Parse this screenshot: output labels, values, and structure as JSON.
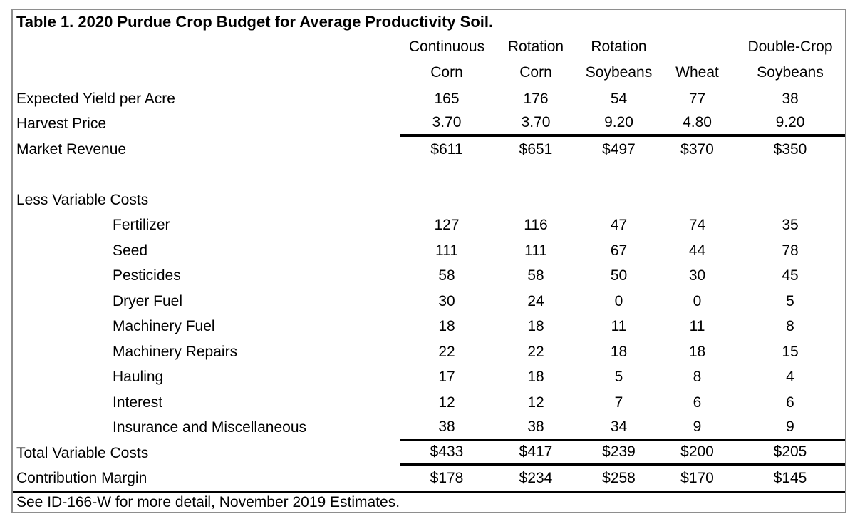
{
  "table": {
    "title": "Table 1. 2020 Purdue Crop Budget for Average Productivity Soil.",
    "columns": [
      {
        "line1": "Continuous",
        "line2": "Corn"
      },
      {
        "line1": "Rotation",
        "line2": "Corn"
      },
      {
        "line1": "Rotation",
        "line2": "Soybeans"
      },
      {
        "line1": "",
        "line2": "Wheat"
      },
      {
        "line1": "Double-Crop",
        "line2": "Soybeans"
      }
    ],
    "rows": [
      {
        "label": "Expected Yield per Acre",
        "indent": false,
        "values": [
          "165",
          "176",
          "54",
          "77",
          "38"
        ],
        "rule_below": "none"
      },
      {
        "label": "Harvest Price",
        "indent": false,
        "values": [
          "3.70",
          "3.70",
          "9.20",
          "4.80",
          "9.20"
        ],
        "rule_below": "thick"
      },
      {
        "label": "Market Revenue",
        "indent": false,
        "values": [
          "$611",
          "$651",
          "$497",
          "$370",
          "$350"
        ],
        "rule_below": "none"
      },
      {
        "label": "",
        "indent": false,
        "values": [
          "",
          "",
          "",
          "",
          ""
        ],
        "rule_below": "none"
      },
      {
        "label": "Less Variable Costs",
        "indent": false,
        "values": [
          "",
          "",
          "",
          "",
          ""
        ],
        "rule_below": "none"
      },
      {
        "label": "Fertilizer",
        "indent": true,
        "values": [
          "127",
          "116",
          "47",
          "74",
          "35"
        ],
        "rule_below": "none"
      },
      {
        "label": "Seed",
        "indent": true,
        "values": [
          "111",
          "111",
          "67",
          "44",
          "78"
        ],
        "rule_below": "none"
      },
      {
        "label": "Pesticides",
        "indent": true,
        "values": [
          "58",
          "58",
          "50",
          "30",
          "45"
        ],
        "rule_below": "none"
      },
      {
        "label": "Dryer Fuel",
        "indent": true,
        "values": [
          "30",
          "24",
          "0",
          "0",
          "5"
        ],
        "rule_below": "none"
      },
      {
        "label": "Machinery Fuel",
        "indent": true,
        "values": [
          "18",
          "18",
          "11",
          "11",
          "8"
        ],
        "rule_below": "none"
      },
      {
        "label": "Machinery Repairs",
        "indent": true,
        "values": [
          "22",
          "22",
          "18",
          "18",
          "15"
        ],
        "rule_below": "none"
      },
      {
        "label": "Hauling",
        "indent": true,
        "values": [
          "17",
          "18",
          "5",
          "8",
          "4"
        ],
        "rule_below": "none"
      },
      {
        "label": "Interest",
        "indent": true,
        "values": [
          "12",
          "12",
          "7",
          "6",
          "6"
        ],
        "rule_below": "none"
      },
      {
        "label": "Insurance and Miscellaneous",
        "indent": true,
        "values": [
          "38",
          "38",
          "34",
          "9",
          "9"
        ],
        "rule_below": "thin"
      },
      {
        "label": "Total Variable Costs",
        "indent": false,
        "values": [
          "$433",
          "$417",
          "$239",
          "$200",
          "$205"
        ],
        "rule_below": "thick"
      },
      {
        "label": "Contribution Margin",
        "indent": false,
        "values": [
          "$178",
          "$234",
          "$258",
          "$170",
          "$145"
        ],
        "rule_below": "none"
      }
    ],
    "footnote": "See ID-166-W for more detail, November 2019 Estimates.",
    "colors": {
      "text": "#000000",
      "outer_border": "#8e8e8e",
      "rule": "#000000",
      "background": "#ffffff"
    }
  }
}
